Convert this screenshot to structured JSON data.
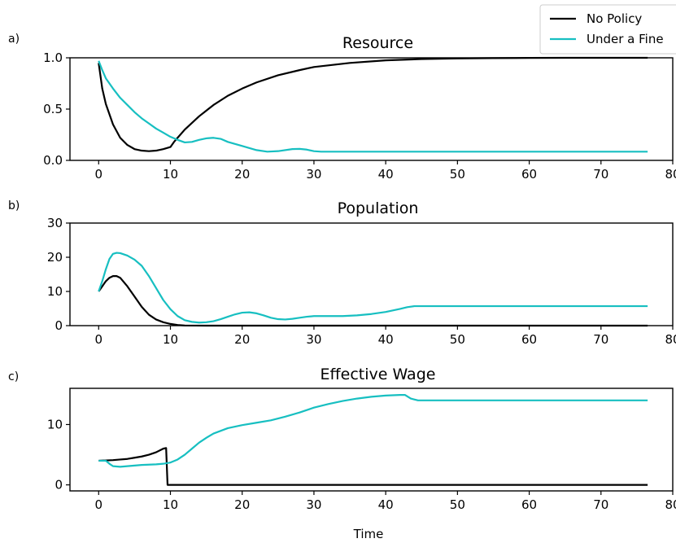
{
  "figure": {
    "panels": [
      "a)",
      "b)",
      "c)"
    ],
    "xlabel": "Time"
  },
  "legend": {
    "position": "top-right",
    "entries": [
      {
        "name": "No Policy",
        "color": "#000000"
      },
      {
        "name": "Under a Fine",
        "color": "#17bfc1"
      }
    ]
  },
  "chart_data": [
    {
      "type": "line",
      "panel": "a)",
      "title": "Resource",
      "xlim": [
        -4,
        80
      ],
      "ylim": [
        0,
        1.0
      ],
      "xticks": [
        0,
        10,
        20,
        30,
        40,
        50,
        60,
        70,
        80
      ],
      "yticks": [
        0.0,
        0.5,
        1.0
      ],
      "ytick_labels": [
        "0.0",
        "0.5",
        "1.0"
      ],
      "series": [
        {
          "name": "No Policy",
          "color": "#000000",
          "points": [
            [
              0,
              0.95
            ],
            [
              0.5,
              0.7
            ],
            [
              1,
              0.55
            ],
            [
              2,
              0.35
            ],
            [
              3,
              0.22
            ],
            [
              4,
              0.15
            ],
            [
              5,
              0.11
            ],
            [
              6,
              0.095
            ],
            [
              7,
              0.09
            ],
            [
              8,
              0.095
            ],
            [
              9,
              0.11
            ],
            [
              10,
              0.13
            ],
            [
              10.5,
              0.18
            ],
            [
              11,
              0.22
            ],
            [
              12,
              0.3
            ],
            [
              14,
              0.43
            ],
            [
              16,
              0.54
            ],
            [
              18,
              0.63
            ],
            [
              20,
              0.7
            ],
            [
              22,
              0.76
            ],
            [
              25,
              0.83
            ],
            [
              28,
              0.88
            ],
            [
              30,
              0.91
            ],
            [
              35,
              0.95
            ],
            [
              40,
              0.975
            ],
            [
              45,
              0.988
            ],
            [
              50,
              0.994
            ],
            [
              55,
              0.997
            ],
            [
              60,
              0.999
            ],
            [
              65,
              1.0
            ],
            [
              70,
              1.0
            ],
            [
              76.5,
              1.0
            ]
          ]
        },
        {
          "name": "Under a Fine",
          "color": "#17bfc1",
          "points": [
            [
              0,
              0.97
            ],
            [
              0.5,
              0.88
            ],
            [
              1,
              0.8
            ],
            [
              2,
              0.7
            ],
            [
              3,
              0.61
            ],
            [
              4,
              0.54
            ],
            [
              5,
              0.47
            ],
            [
              6,
              0.41
            ],
            [
              7,
              0.36
            ],
            [
              8,
              0.31
            ],
            [
              9,
              0.27
            ],
            [
              10,
              0.23
            ],
            [
              11,
              0.2
            ],
            [
              12,
              0.175
            ],
            [
              13,
              0.18
            ],
            [
              14,
              0.2
            ],
            [
              15,
              0.215
            ],
            [
              16,
              0.22
            ],
            [
              17,
              0.21
            ],
            [
              18,
              0.18
            ],
            [
              20,
              0.14
            ],
            [
              22,
              0.1
            ],
            [
              23.5,
              0.085
            ],
            [
              25,
              0.09
            ],
            [
              27,
              0.11
            ],
            [
              28,
              0.112
            ],
            [
              29,
              0.105
            ],
            [
              30,
              0.09
            ],
            [
              31,
              0.085
            ],
            [
              35,
              0.085
            ],
            [
              40,
              0.085
            ],
            [
              50,
              0.085
            ],
            [
              60,
              0.085
            ],
            [
              70,
              0.085
            ],
            [
              76.5,
              0.085
            ]
          ]
        }
      ]
    },
    {
      "type": "line",
      "panel": "b)",
      "title": "Population",
      "xlim": [
        -4,
        80
      ],
      "ylim": [
        0,
        30
      ],
      "xticks": [
        0,
        10,
        20,
        30,
        40,
        50,
        60,
        70,
        80
      ],
      "yticks": [
        0,
        10,
        20,
        30
      ],
      "ytick_labels": [
        "0",
        "10",
        "20",
        "30"
      ],
      "series": [
        {
          "name": "No Policy",
          "color": "#000000",
          "points": [
            [
              0,
              10
            ],
            [
              0.5,
              11.5
            ],
            [
              1,
              13
            ],
            [
              1.5,
              14
            ],
            [
              2,
              14.5
            ],
            [
              2.5,
              14.5
            ],
            [
              3,
              14
            ],
            [
              4,
              11.5
            ],
            [
              5,
              8.5
            ],
            [
              6,
              5.5
            ],
            [
              7,
              3.2
            ],
            [
              8,
              1.8
            ],
            [
              9,
              1.0
            ],
            [
              10,
              0.5
            ],
            [
              11,
              0.2
            ],
            [
              12,
              0.05
            ],
            [
              15,
              0
            ],
            [
              20,
              0
            ],
            [
              30,
              0
            ],
            [
              40,
              0
            ],
            [
              50,
              0
            ],
            [
              60,
              0
            ],
            [
              70,
              0
            ],
            [
              76.5,
              0
            ]
          ]
        },
        {
          "name": "Under a Fine",
          "color": "#17bfc1",
          "points": [
            [
              0,
              10
            ],
            [
              0.5,
              13
            ],
            [
              1,
              16.5
            ],
            [
              1.5,
              19.5
            ],
            [
              2,
              21
            ],
            [
              2.5,
              21.3
            ],
            [
              3,
              21.2
            ],
            [
              4,
              20.5
            ],
            [
              5,
              19.3
            ],
            [
              6,
              17.5
            ],
            [
              7,
              14.5
            ],
            [
              8,
              11
            ],
            [
              9,
              7.5
            ],
            [
              10,
              4.8
            ],
            [
              11,
              2.8
            ],
            [
              12,
              1.6
            ],
            [
              13,
              1.1
            ],
            [
              14,
              0.9
            ],
            [
              15,
              1.0
            ],
            [
              16,
              1.3
            ],
            [
              17,
              1.9
            ],
            [
              18,
              2.6
            ],
            [
              19,
              3.3
            ],
            [
              20,
              3.8
            ],
            [
              21,
              3.9
            ],
            [
              22,
              3.6
            ],
            [
              23,
              3.0
            ],
            [
              24,
              2.3
            ],
            [
              25,
              1.9
            ],
            [
              26,
              1.8
            ],
            [
              27,
              2.0
            ],
            [
              28,
              2.3
            ],
            [
              29,
              2.6
            ],
            [
              30,
              2.8
            ],
            [
              32,
              2.8
            ],
            [
              34,
              2.8
            ],
            [
              36,
              3.0
            ],
            [
              38,
              3.4
            ],
            [
              40,
              4.0
            ],
            [
              42,
              4.9
            ],
            [
              43,
              5.4
            ],
            [
              44,
              5.7
            ],
            [
              45,
              5.7
            ],
            [
              50,
              5.7
            ],
            [
              60,
              5.7
            ],
            [
              70,
              5.7
            ],
            [
              76.5,
              5.7
            ]
          ]
        }
      ]
    },
    {
      "type": "line",
      "panel": "c)",
      "title": "Effective Wage",
      "xlim": [
        -4,
        80
      ],
      "ylim": [
        -1,
        16
      ],
      "xticks": [
        0,
        10,
        20,
        30,
        40,
        50,
        60,
        70,
        80
      ],
      "yticks": [
        0,
        10
      ],
      "ytick_labels": [
        "0",
        "10"
      ],
      "series": [
        {
          "name": "No Policy",
          "color": "#000000",
          "points": [
            [
              0,
              4.0
            ],
            [
              1,
              4.05
            ],
            [
              2,
              4.1
            ],
            [
              3,
              4.2
            ],
            [
              4,
              4.3
            ],
            [
              5,
              4.5
            ],
            [
              6,
              4.7
            ],
            [
              7,
              5.0
            ],
            [
              8,
              5.4
            ],
            [
              9,
              6.0
            ],
            [
              9.4,
              6.1
            ],
            [
              9.6,
              0
            ],
            [
              10,
              0
            ],
            [
              20,
              0
            ],
            [
              30,
              0
            ],
            [
              40,
              0
            ],
            [
              50,
              0
            ],
            [
              60,
              0
            ],
            [
              70,
              0
            ],
            [
              76.5,
              0
            ]
          ]
        },
        {
          "name": "Under a Fine",
          "color": "#17bfc1",
          "points": [
            [
              0,
              4.0
            ],
            [
              1,
              4.0
            ],
            [
              1.5,
              3.5
            ],
            [
              2,
              3.1
            ],
            [
              3,
              3.0
            ],
            [
              4,
              3.1
            ],
            [
              5,
              3.2
            ],
            [
              6,
              3.3
            ],
            [
              7,
              3.35
            ],
            [
              8,
              3.4
            ],
            [
              9,
              3.5
            ],
            [
              10,
              3.7
            ],
            [
              11,
              4.2
            ],
            [
              12,
              5.0
            ],
            [
              13,
              6.0
            ],
            [
              14,
              7.0
            ],
            [
              15,
              7.8
            ],
            [
              16,
              8.5
            ],
            [
              18,
              9.4
            ],
            [
              20,
              9.9
            ],
            [
              22,
              10.3
            ],
            [
              24,
              10.7
            ],
            [
              26,
              11.3
            ],
            [
              28,
              12.0
            ],
            [
              30,
              12.8
            ],
            [
              32,
              13.4
            ],
            [
              34,
              13.9
            ],
            [
              36,
              14.3
            ],
            [
              38,
              14.6
            ],
            [
              40,
              14.8
            ],
            [
              42,
              14.9
            ],
            [
              42.7,
              14.9
            ],
            [
              43.5,
              14.3
            ],
            [
              44.5,
              14.0
            ],
            [
              46,
              14.0
            ],
            [
              50,
              14.0
            ],
            [
              60,
              14.0
            ],
            [
              70,
              14.0
            ],
            [
              76.5,
              14.0
            ]
          ]
        }
      ]
    }
  ]
}
